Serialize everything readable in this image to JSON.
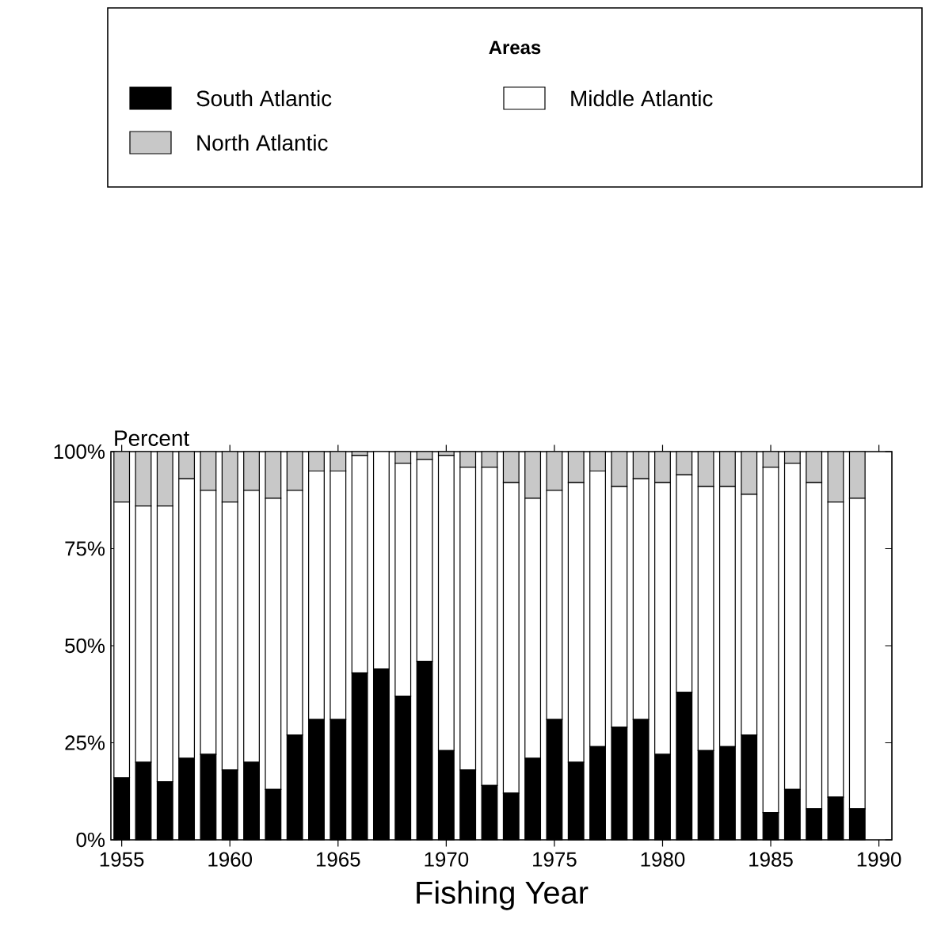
{
  "chart_data": {
    "type": "bar",
    "stacked": true,
    "xlabel": "Fishing Year",
    "ylabel": "Percent",
    "legend_title": "Areas",
    "legend": "top",
    "x": [
      1955,
      1956,
      1957,
      1958,
      1959,
      1960,
      1961,
      1962,
      1963,
      1964,
      1965,
      1966,
      1967,
      1968,
      1969,
      1970,
      1971,
      1972,
      1973,
      1974,
      1975,
      1976,
      1977,
      1978,
      1979,
      1980,
      1981,
      1982,
      1983,
      1984,
      1985,
      1986,
      1987,
      1988,
      1989
    ],
    "xlim": [
      1954.5,
      1990.6
    ],
    "xticks": [
      1955,
      1960,
      1965,
      1970,
      1975,
      1980,
      1985,
      1990
    ],
    "ylim": [
      0,
      100
    ],
    "yticks": [
      {
        "value": 0,
        "label": "0%"
      },
      {
        "value": 25,
        "label": "25%"
      },
      {
        "value": 50,
        "label": "50%"
      },
      {
        "value": 75,
        "label": "75%"
      },
      {
        "value": 100,
        "label": "100%"
      }
    ],
    "series": [
      {
        "name": "South Atlantic",
        "color": "#000000",
        "values": [
          16,
          20,
          15,
          21,
          22,
          18,
          20,
          13,
          27,
          31,
          31,
          43,
          44,
          37,
          46,
          23,
          18,
          14,
          12,
          21,
          31,
          20,
          24,
          29,
          31,
          22,
          38,
          23,
          24,
          27,
          7,
          13,
          8,
          11,
          8
        ]
      },
      {
        "name": "Middle Atlantic",
        "color": "#ffffff",
        "values": [
          71,
          66,
          71,
          72,
          68,
          69,
          70,
          75,
          63,
          64,
          64,
          56,
          56,
          60,
          52,
          76,
          78,
          82,
          80,
          67,
          59,
          72,
          71,
          62,
          62,
          70,
          56,
          68,
          67,
          62,
          89,
          84,
          84,
          76,
          80
        ]
      },
      {
        "name": "North Atlantic",
        "color": "#c8c8c8",
        "values": [
          13,
          14,
          14,
          7,
          10,
          13,
          10,
          12,
          10,
          5,
          5,
          1,
          0,
          3,
          2,
          1,
          4,
          4,
          8,
          12,
          10,
          8,
          5,
          9,
          7,
          8,
          6,
          9,
          9,
          11,
          4,
          3,
          8,
          13,
          12
        ]
      }
    ]
  }
}
